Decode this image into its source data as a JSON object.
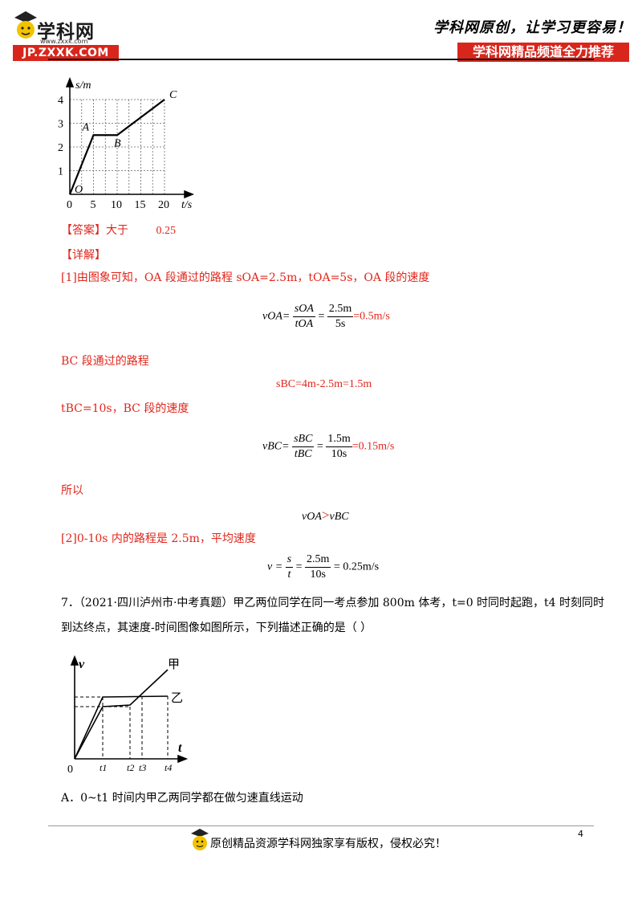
{
  "header": {
    "logo_text": "学科网",
    "logo_url": "www.zxxk.com",
    "badge": "JP.ZXXK.COM",
    "slogan": "学科网原创，让学习更容易！",
    "channel": "学科网精品频道全力推荐"
  },
  "graph1": {
    "y_axis_label": "s/m",
    "x_axis_label": "t/s",
    "y_ticks": [
      "1",
      "2",
      "3",
      "4"
    ],
    "x_ticks": [
      "0",
      "5",
      "10",
      "15",
      "20"
    ],
    "point_labels": [
      "O",
      "A",
      "B",
      "C"
    ],
    "chart_data": {
      "type": "line",
      "x": [
        0,
        5,
        10,
        20
      ],
      "y": [
        0,
        2.5,
        2.5,
        4
      ],
      "xlim": [
        0,
        20
      ],
      "ylim": [
        0,
        4
      ]
    }
  },
  "answer": {
    "tag": "【答案】",
    "text1": "大于",
    "text2": "0.25"
  },
  "detail": {
    "tag": "【详解】",
    "line1": "[1]由图象可知，OA 段通过的路程 sOA=2.5m，tOA=5s，OA 段的速度",
    "f1": {
      "lhs": "vOA=",
      "num1": "sOA",
      "den1": "tOA",
      "num2": "2.5m",
      "den2": "5s",
      "result": "=0.5m/s"
    },
    "line2": "BC 段通过的路程",
    "f2": "sBC=4m-2.5m=1.5m",
    "line3": "tBC=10s，BC 段的速度",
    "f3": {
      "lhs": "vBC=",
      "num1": "sBC",
      "den1": "tBC",
      "num2": "1.5m",
      "den2": "10s",
      "result": "=0.15m/s"
    },
    "line4": "所以",
    "f4": {
      "left": "vOA",
      "op": ">",
      "right": "vBC"
    },
    "line5": "[2]0-10s 内的路程是 2.5m，平均速度",
    "f5": {
      "lhs": "v =",
      "num1": "s",
      "den1": "t",
      "eq": "=",
      "num2": "2.5m",
      "den2": "10s",
      "result": "= 0.25m/s"
    }
  },
  "question7": {
    "line1": "7．（2021·四川泸州市·中考真题）甲乙两位同学在同一考点参加 800m 体考，t=0 时同时起跑，t4 时刻同时",
    "line2": "到达终点，其速度-时间图像如图所示，下列描述正确的是（        ）",
    "option_a": "A．0~t1 时间内甲乙两同学都在做匀速直线运动"
  },
  "graph2": {
    "y_axis_label": "v",
    "x_axis_label": "t",
    "origin": "0",
    "x_ticks": [
      "t1",
      "t2",
      "t3",
      "t4"
    ],
    "series_labels": [
      "甲",
      "乙"
    ]
  },
  "footer": {
    "page_number": "4",
    "text": "原创精品资源学科网独家享有版权，侵权必究！"
  }
}
